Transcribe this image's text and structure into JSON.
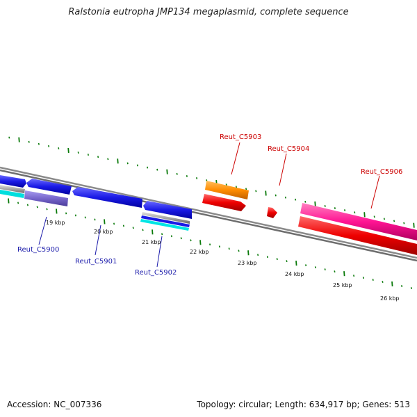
{
  "title": "Ralstonia eutropha JMP134 megaplasmid, complete sequence",
  "footer": {
    "accession": "Accession: NC_007336",
    "summary": "Topology: circular; Length: 634,917 bp; Genes: 513"
  },
  "kbp_labels": [
    "19 kbp",
    "20 kbp",
    "21 kbp",
    "22 kbp",
    "23 kbp",
    "24 kbp",
    "25 kbp",
    "26 kbp"
  ],
  "genes": {
    "top": [
      "Reut_C5903",
      "Reut_C5904",
      "Reut_C5906"
    ],
    "bottom": [
      "Reut_C5900",
      "Reut_C5901",
      "Reut_C5902"
    ]
  },
  "colors": {
    "backbone": "#808080",
    "tick": "#0a7a0a",
    "cds": "#1a1ae6",
    "cds_red": "#ee0000",
    "orange": "#ff8c00",
    "magenta": "#ff1493",
    "cyan": "#00e5e5",
    "slate": "#7766cc",
    "label_top": "#cc0000",
    "label_bottom": "#1a1aaa"
  }
}
